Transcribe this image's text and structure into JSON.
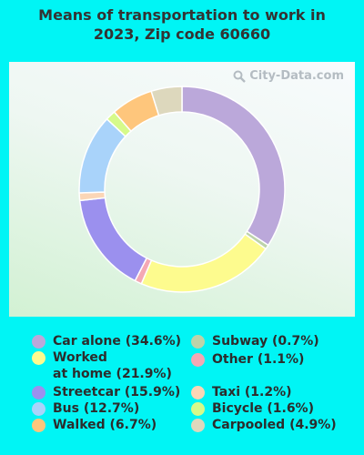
{
  "title_lines": [
    "Means of transportation to work in",
    "2023, Zip code 60660"
  ],
  "watermark": {
    "text": "City-Data.com",
    "icon": "magnifier-icon"
  },
  "chart_data": {
    "type": "pie",
    "variant": "donut",
    "title": "Means of transportation to work in 2023, Zip code 60660",
    "start_angle_deg": 0,
    "slices": [
      {
        "name": "Car alone",
        "value": 34.6,
        "color": "#bba8da"
      },
      {
        "name": "Subway",
        "value": 0.7,
        "color": "#bdd3a9"
      },
      {
        "name": "Worked at home",
        "value": 21.9,
        "color": "#fdfb8e"
      },
      {
        "name": "Other",
        "value": 1.1,
        "color": "#f4a8b4"
      },
      {
        "name": "Streetcar",
        "value": 15.9,
        "color": "#9b90ee"
      },
      {
        "name": "Taxi",
        "value": 1.2,
        "color": "#fbd6b6"
      },
      {
        "name": "Bus",
        "value": 12.7,
        "color": "#a9d3fa"
      },
      {
        "name": "Bicycle",
        "value": 1.6,
        "color": "#d6fa8a"
      },
      {
        "name": "Walked",
        "value": 6.7,
        "color": "#fec67c"
      },
      {
        "name": "Carpooled",
        "value": 4.9,
        "color": "#ddd8bd"
      }
    ]
  },
  "legend": {
    "left": [
      {
        "label": "Car alone (34.6%)",
        "color": "#bba8da"
      },
      {
        "label": "Worked\nat home (21.9%)",
        "color": "#fdfb8e"
      },
      {
        "label": "Streetcar (15.9%)",
        "color": "#9b90ee"
      },
      {
        "label": "Bus (12.7%)",
        "color": "#a9d3fa"
      },
      {
        "label": "Walked (6.7%)",
        "color": "#fec67c"
      }
    ],
    "right": [
      {
        "label": "Subway (0.7%)",
        "color": "#bdd3a9"
      },
      {
        "label": "Other (1.1%)",
        "color": "#f4a8b4"
      },
      {
        "label": "Taxi (1.2%)",
        "color": "#fbd6b6"
      },
      {
        "label": "Bicycle (1.6%)",
        "color": "#d6fa8a"
      },
      {
        "label": "Carpooled (4.9%)",
        "color": "#ddd8bd"
      }
    ]
  }
}
